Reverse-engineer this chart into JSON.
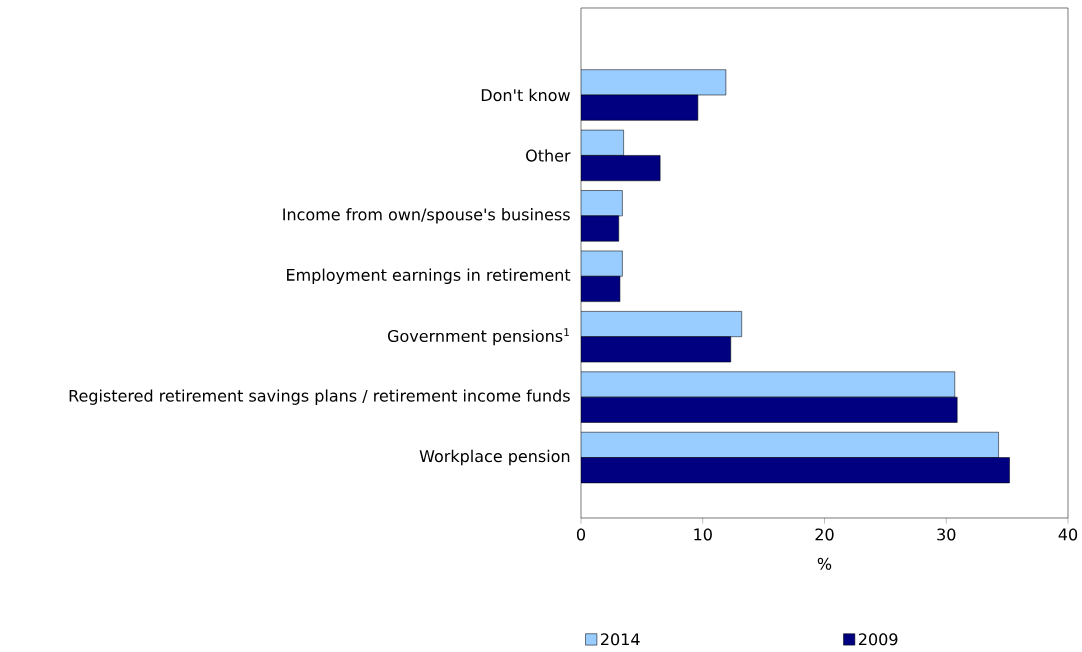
{
  "chart_data": {
    "type": "bar",
    "orientation": "horizontal",
    "xlabel": "%",
    "categories": [
      "Don't know",
      "Other",
      "Income from own/spouse's business",
      "Employment earnings in retirement",
      "Government pensions$^{1}$",
      "Registered retirement savings plans / retirement income funds",
      "Workplace pension"
    ],
    "series": [
      {
        "name": "2014",
        "color": "#99ccff",
        "values": [
          11.9,
          3.5,
          3.4,
          3.4,
          13.2,
          30.7,
          34.3
        ]
      },
      {
        "name": "2009",
        "color": "#000080",
        "values": [
          9.6,
          6.5,
          3.1,
          3.2,
          12.3,
          30.9,
          35.2
        ]
      }
    ],
    "xlim": [
      0,
      40
    ],
    "xticks": [
      0,
      10,
      20,
      30,
      40
    ],
    "grid": false,
    "legend": "bottom"
  }
}
